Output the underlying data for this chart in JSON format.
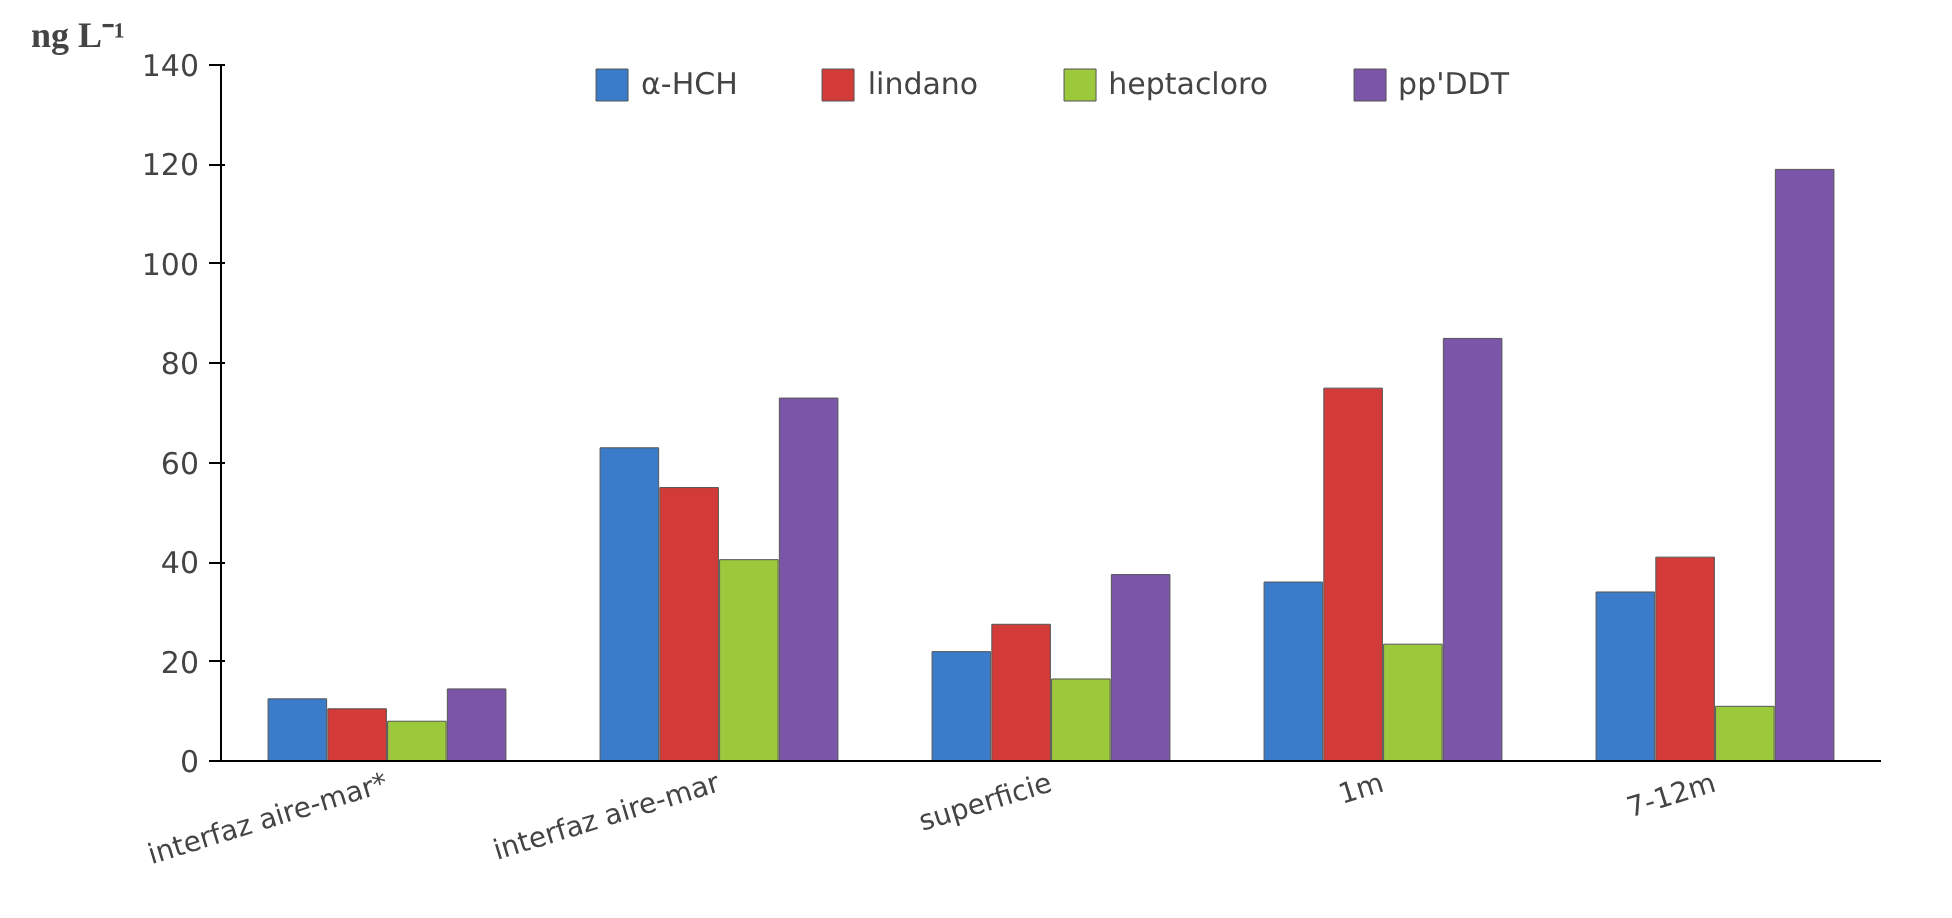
{
  "chart_data": {
    "type": "bar",
    "ylabel": "ng L⁻¹",
    "categories": [
      "interfaz aire-mar*",
      "interfaz aire-mar",
      "superficie",
      "1m",
      "7-12m"
    ],
    "series": [
      {
        "name": "α-HCH",
        "color": "#3a7cc9",
        "values": [
          12.5,
          63,
          22,
          36,
          34
        ]
      },
      {
        "name": "lindano",
        "color": "#d23b38",
        "values": [
          10.5,
          55,
          27.5,
          75,
          41
        ]
      },
      {
        "name": "heptacloro",
        "color": "#9cc83c",
        "values": [
          8,
          40.5,
          16.5,
          23.5,
          11
        ]
      },
      {
        "name": "pp'DDT",
        "color": "#7b55a8",
        "values": [
          14.5,
          73,
          37.5,
          85,
          119
        ]
      }
    ],
    "ylim": [
      0,
      140
    ],
    "yticks": [
      0,
      20,
      40,
      60,
      80,
      100,
      120,
      140
    ],
    "grid": false,
    "legend": "top"
  }
}
